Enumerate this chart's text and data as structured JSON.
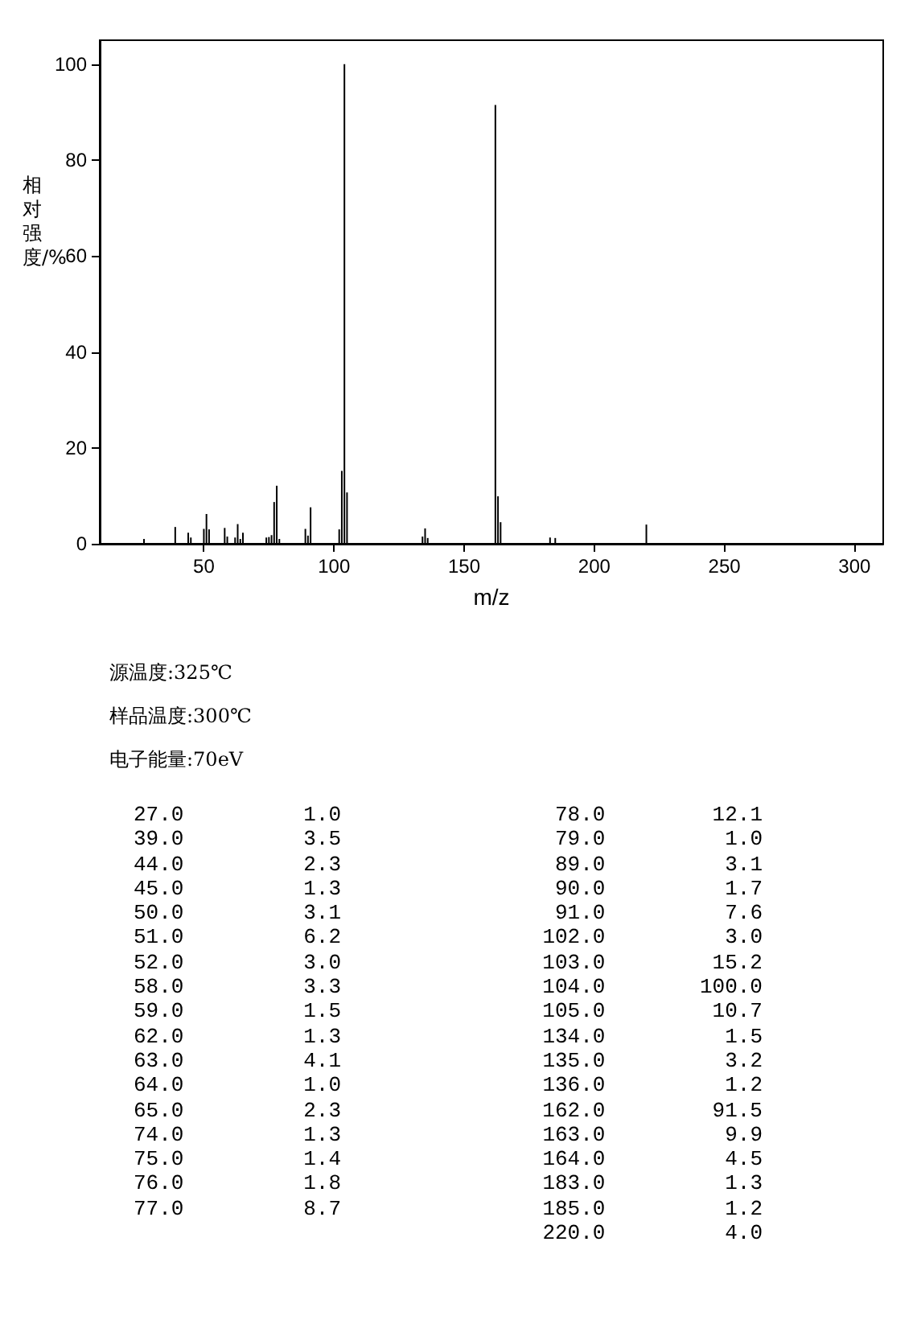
{
  "chart_data": {
    "type": "bar",
    "xlabel": "m/z",
    "ylabel": "相对强度/%",
    "x": [
      27,
      39,
      44,
      45,
      50,
      51,
      52,
      58,
      59,
      62,
      63,
      64,
      65,
      74,
      75,
      76,
      77,
      78,
      79,
      89,
      90,
      91,
      102,
      103,
      104,
      105,
      134,
      135,
      136,
      162,
      163,
      164,
      183,
      185,
      220
    ],
    "values": [
      1.0,
      3.5,
      2.3,
      1.3,
      3.1,
      6.2,
      3.0,
      3.3,
      1.5,
      1.3,
      4.1,
      1.0,
      2.3,
      1.3,
      1.4,
      1.8,
      8.7,
      12.1,
      1.0,
      3.1,
      1.7,
      7.6,
      3.0,
      15.2,
      100.0,
      10.7,
      1.5,
      3.2,
      1.2,
      91.5,
      9.9,
      4.5,
      1.3,
      1.2,
      4.0
    ],
    "color": "#000000",
    "grid": false,
    "xlim": [
      10,
      311
    ],
    "xticks": [
      50,
      100,
      150,
      200,
      250,
      300
    ],
    "ylim": [
      0,
      105
    ],
    "yticks": [
      0,
      20,
      40,
      60,
      80,
      100
    ],
    "annotations": [
      "源温度:325℃",
      "样品温度:300℃",
      "电子能量:70eV",
      "27.0 1.0",
      "39.0 3.5",
      "44.0 2.3",
      "45.0 1.3",
      "50.0 3.1",
      "51.0 6.2",
      "52.0 3.0",
      "58.0 3.3",
      "59.0 1.5",
      "62.0 1.3",
      "63.0 4.1",
      "64.0 1.0",
      "65.0 2.3",
      "74.0 1.3",
      "75.0 1.4",
      "76.0 1.8",
      "77.0 8.7",
      "78.0 12.1",
      "79.0 1.0",
      "89.0 3.1",
      "90.0 1.7",
      "91.0 7.6",
      "102.0 3.0",
      "103.0 15.2",
      "104.0 100.0",
      "105.0 10.7",
      "134.0 1.5",
      "135.0 3.2",
      "136.0 1.2",
      "162.0 91.5",
      "163.0 9.9",
      "164.0 4.5",
      "183.0 1.3",
      "185.0 1.2",
      "220.0 4.0"
    ]
  }
}
